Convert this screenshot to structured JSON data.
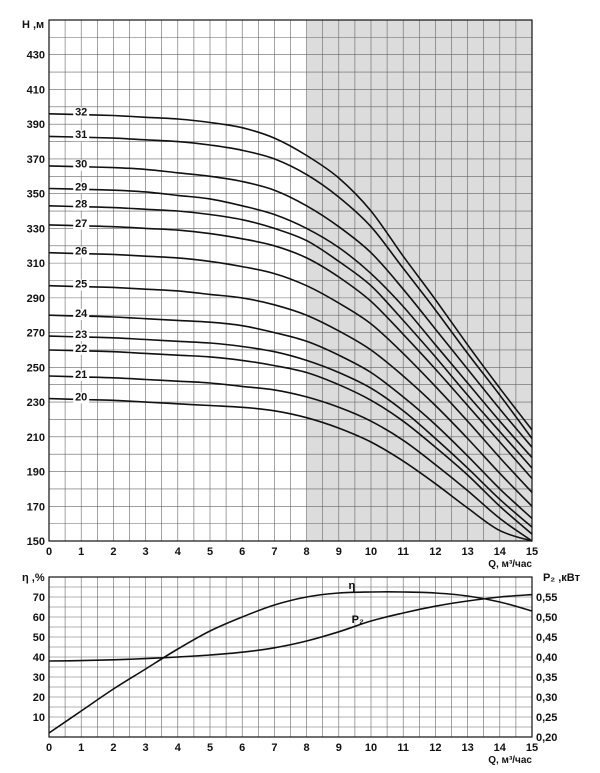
{
  "chart_data": [
    {
      "type": "line",
      "title": "",
      "ylabel": "H ,м",
      "xlabel": "Q, м³/час",
      "xlim": [
        0,
        15
      ],
      "ylim": [
        150,
        450
      ],
      "x_ticks": [
        "0",
        "1",
        "2",
        "3",
        "4",
        "5",
        "6",
        "7",
        "8",
        "9",
        "10",
        "11",
        "12",
        "13",
        "14",
        "15"
      ],
      "y_ticks": [
        "150",
        "170",
        "190",
        "210",
        "230",
        "250",
        "270",
        "290",
        "310",
        "330",
        "350",
        "370",
        "390",
        "410",
        "430"
      ],
      "grid": true,
      "shaded_x_range": [
        8,
        15
      ],
      "colors": {
        "curve": "#111111",
        "shade": "#dcdcdc",
        "grid": "#666666"
      },
      "x": [
        0,
        1,
        2,
        3,
        4,
        5,
        6,
        7,
        8,
        9,
        10,
        11,
        12,
        13,
        14,
        15
      ],
      "series": [
        {
          "name": "32",
          "values": [
            396,
            395.5,
            395,
            394,
            393,
            391,
            388,
            382,
            372,
            359,
            340,
            314,
            289,
            263,
            238,
            214
          ]
        },
        {
          "name": "31",
          "values": [
            383,
            382.5,
            382,
            381,
            380,
            378,
            375,
            370,
            361,
            348,
            331,
            307,
            283,
            258,
            234,
            209
          ]
        },
        {
          "name": "30",
          "values": [
            366,
            365.5,
            365,
            364,
            362,
            360,
            357,
            352,
            343,
            331,
            316,
            295,
            272,
            249,
            226,
            204
          ]
        },
        {
          "name": "29",
          "values": [
            353,
            352.5,
            352,
            351,
            349,
            347,
            343,
            338,
            330,
            319,
            304,
            285,
            263,
            241,
            219,
            198
          ]
        },
        {
          "name": "28",
          "values": [
            343,
            342.5,
            342,
            341,
            340,
            338,
            335,
            330,
            323,
            311,
            297,
            277,
            256,
            234,
            213,
            192
          ]
        },
        {
          "name": "27",
          "values": [
            332,
            331.5,
            331,
            330,
            329,
            327,
            324,
            320,
            313,
            302,
            288,
            269,
            249,
            228,
            207,
            186
          ]
        },
        {
          "name": "26",
          "values": [
            316,
            315.5,
            315,
            314,
            313,
            311,
            308,
            304,
            297,
            287,
            275,
            258,
            239,
            219,
            198,
            178
          ]
        },
        {
          "name": "25",
          "values": [
            297,
            296.5,
            296,
            295,
            294,
            292,
            290,
            286,
            280,
            271,
            260,
            245,
            228,
            209,
            189,
            170
          ]
        },
        {
          "name": "24",
          "values": [
            280,
            279.5,
            279,
            278,
            277,
            276,
            274,
            270,
            265,
            257,
            247,
            233,
            217,
            199,
            180,
            163
          ]
        },
        {
          "name": "23",
          "values": [
            268,
            267.5,
            267,
            266,
            265,
            264,
            262,
            259,
            254,
            247,
            238,
            225,
            209,
            192,
            174,
            158
          ]
        },
        {
          "name": "22",
          "values": [
            260,
            259.5,
            259,
            258,
            257,
            256,
            254,
            251,
            247,
            240,
            231,
            219,
            204,
            188,
            170,
            154
          ]
        },
        {
          "name": "21",
          "values": [
            245,
            244.5,
            244,
            243,
            242,
            241,
            239,
            237,
            233,
            227,
            219,
            208,
            194,
            179,
            163,
            150
          ]
        },
        {
          "name": "20",
          "values": [
            232,
            231.5,
            231,
            230,
            229,
            228,
            227,
            225,
            221,
            215,
            207,
            196,
            183,
            169,
            156,
            150
          ]
        }
      ]
    },
    {
      "type": "line",
      "title": "",
      "xlabel": "Q, м³/час",
      "ylabel": "η ,%",
      "y2label": "P₂ ,кВт",
      "xlim": [
        0,
        15
      ],
      "ylim": [
        0,
        80
      ],
      "y2lim": [
        0.2,
        0.6
      ],
      "x_ticks": [
        "0",
        "1",
        "2",
        "3",
        "4",
        "5",
        "6",
        "7",
        "8",
        "9",
        "10",
        "11",
        "12",
        "13",
        "14",
        "15"
      ],
      "y_ticks": [
        "10",
        "20",
        "30",
        "40",
        "50",
        "60",
        "70"
      ],
      "y2_ticks": [
        "0,20",
        "0,25",
        "0,30",
        "0,35",
        "0,40",
        "0,45",
        "0,50",
        "0,55"
      ],
      "grid": true,
      "colors": {
        "curve": "#111111",
        "grid": "#666666"
      },
      "x": [
        0,
        1,
        2,
        3,
        4,
        5,
        6,
        7,
        8,
        9,
        10,
        11,
        12,
        13,
        14,
        15
      ],
      "series": [
        {
          "name": "η",
          "axis": "left",
          "values": [
            2,
            13,
            24,
            34,
            44,
            53,
            60,
            66,
            70,
            72,
            72.5,
            72.5,
            72,
            70.5,
            67.5,
            63
          ]
        },
        {
          "name": "P₂",
          "axis": "right",
          "values": [
            0.39,
            0.391,
            0.393,
            0.396,
            0.4,
            0.405,
            0.412,
            0.423,
            0.44,
            0.463,
            0.49,
            0.51,
            0.527,
            0.54,
            0.55,
            0.556
          ]
        }
      ]
    }
  ]
}
